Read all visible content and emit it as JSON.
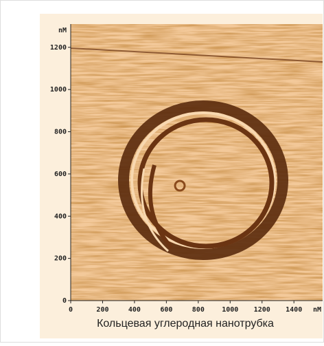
{
  "chart_data": {
    "type": "image",
    "xlabel": "Кольцевая углеродная нанотрубка",
    "yunit": "nM",
    "xunit": "nM",
    "xlim": [
      0,
      1580
    ],
    "ylim": [
      0,
      1310
    ],
    "xticks": [
      0,
      200,
      400,
      600,
      800,
      1000,
      1200,
      1400
    ],
    "yticks": [
      0,
      200,
      400,
      600,
      800,
      1000,
      1200
    ]
  }
}
